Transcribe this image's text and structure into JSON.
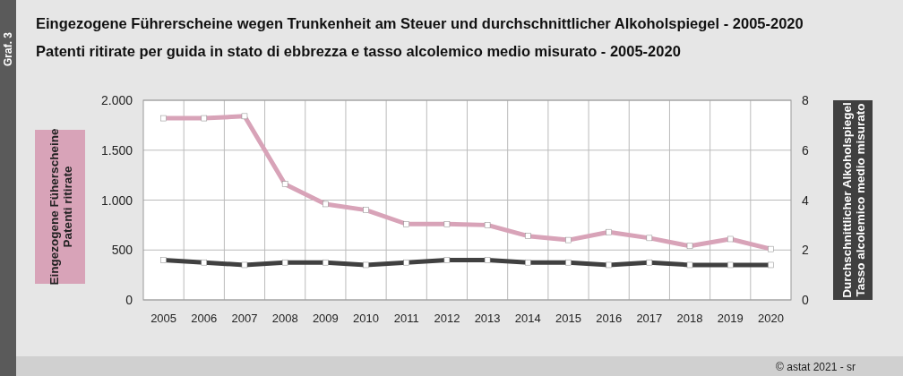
{
  "chart_data": {
    "type": "line",
    "title": "Eingezogene Führerscheine wegen Trunkenheit am Steuer und durchschnittlicher Alkoholspiegel - 2005-2020",
    "subtitle": "Patenti ritirate per guida in stato di ebbrezza e tasso alcolemico medio misurato - 2005-2020",
    "ylabel": "Eingezogene Füherscheine\nPatenti ritirate",
    "y2label": "Durchschnittlicher Alkoholspiegel\nTasso alcolemico medio misurato",
    "annotations": [
      "Graf. 3",
      "© astat 2021 - sr"
    ],
    "categories": [
      "2005",
      "2006",
      "2007",
      "2008",
      "2009",
      "2010",
      "2011",
      "2012",
      "2013",
      "2014",
      "2015",
      "2016",
      "2017",
      "2018",
      "2019",
      "2020"
    ],
    "series": [
      {
        "color": "#d8a3b8",
        "values": [
          1820,
          1820,
          1840,
          1160,
          960,
          900,
          760,
          760,
          750,
          640,
          600,
          680,
          620,
          540,
          610,
          510
        ]
      },
      {
        "color": "#404040",
        "axis": "y2",
        "values": [
          1.6,
          1.5,
          1.4,
          1.5,
          1.5,
          1.4,
          1.5,
          1.6,
          1.6,
          1.5,
          1.5,
          1.4,
          1.5,
          1.4,
          1.4,
          1.4
        ]
      }
    ],
    "ylim": [
      0,
      2000
    ],
    "yticks": [
      0,
      {
        "value": 500,
        "label": "500"
      },
      {
        "value": 1000,
        "label": "1.000"
      },
      {
        "value": 1500,
        "label": "1.500"
      },
      {
        "value": 2000,
        "label": "2.000"
      }
    ],
    "y2lim": [
      0,
      8
    ],
    "y2ticks": [
      0,
      2,
      4,
      6,
      8
    ],
    "grid": true,
    "marker": "square",
    "line_style": "solid"
  }
}
